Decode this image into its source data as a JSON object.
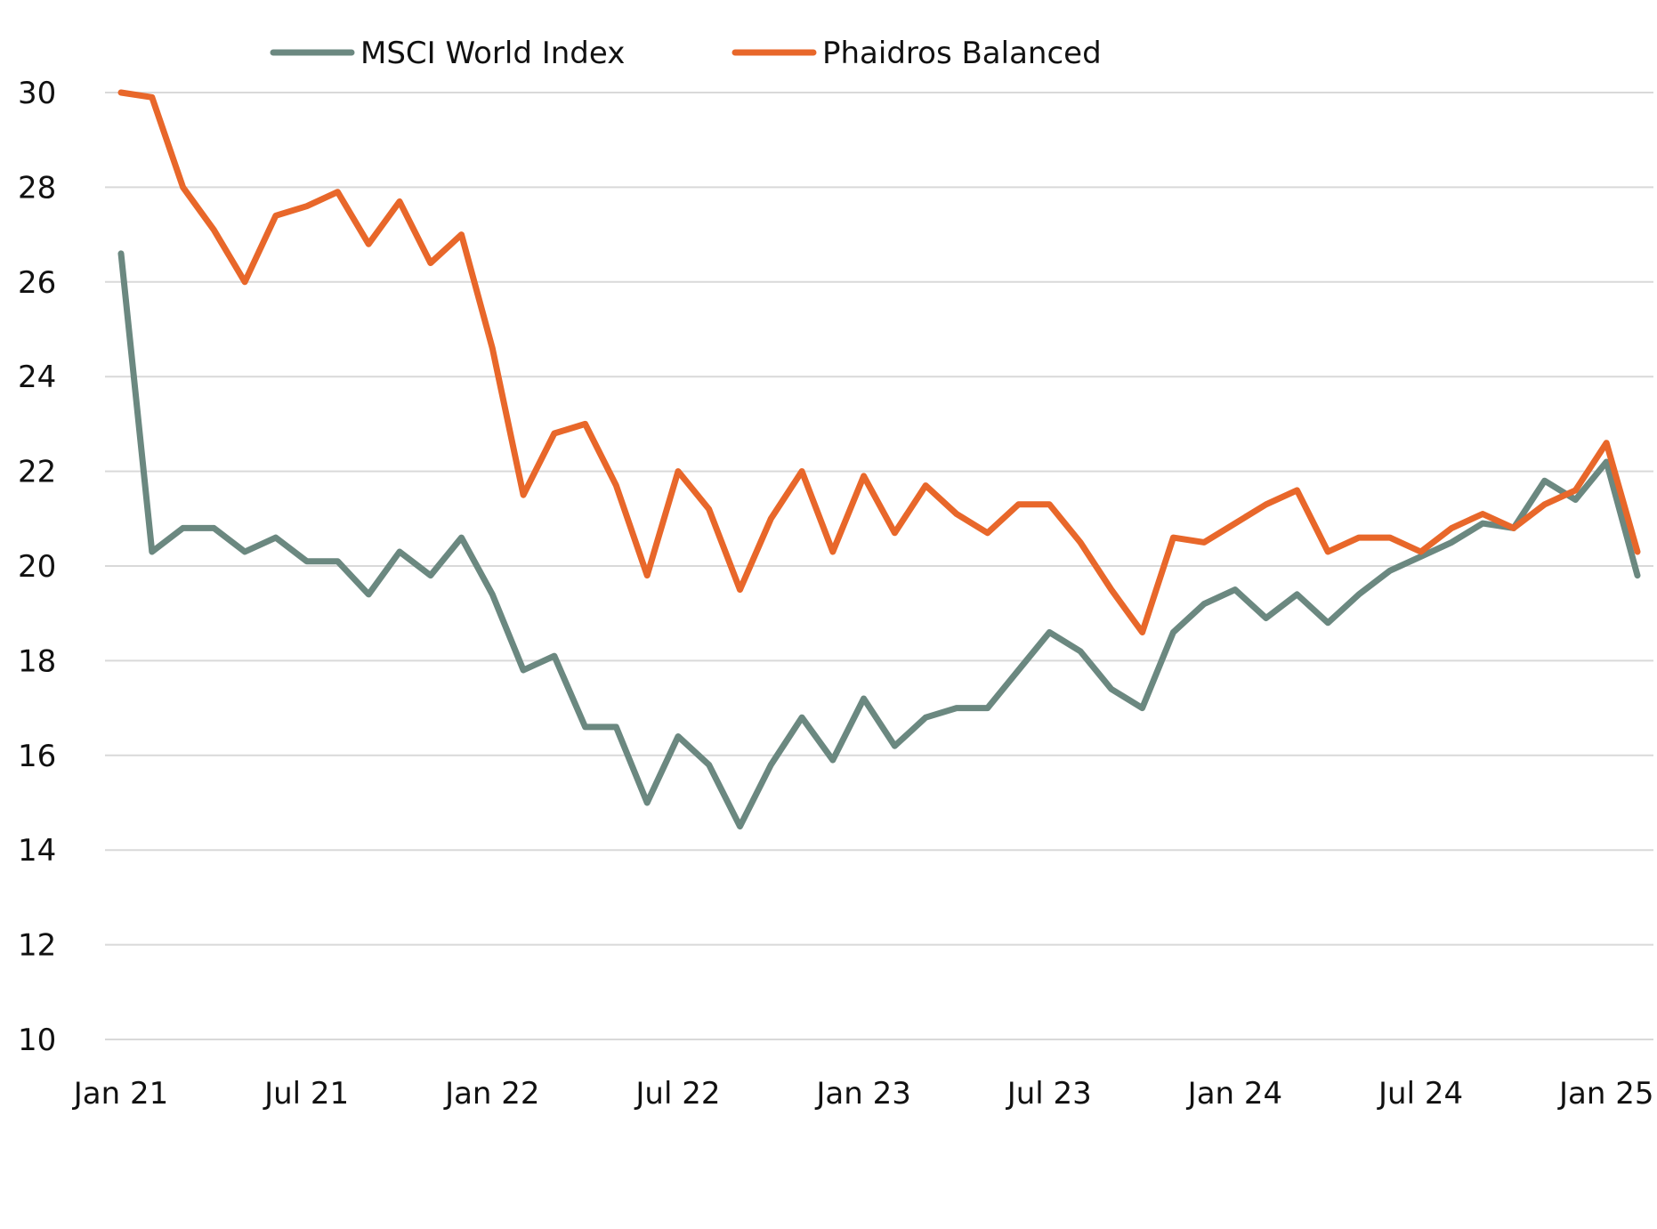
{
  "chart_data": {
    "type": "line",
    "title": "",
    "xlabel": "",
    "ylabel": "",
    "ylim": [
      10,
      30
    ],
    "yticks": [
      10,
      12,
      14,
      16,
      18,
      20,
      22,
      24,
      26,
      28,
      30
    ],
    "xticks": [
      {
        "label": "Jan 21",
        "index": 0
      },
      {
        "label": "Jul 21",
        "index": 6
      },
      {
        "label": "Jan 22",
        "index": 12
      },
      {
        "label": "Jul 22",
        "index": 18
      },
      {
        "label": "Jan 23",
        "index": 24
      },
      {
        "label": "Jul 23",
        "index": 30
      },
      {
        "label": "Jan 24",
        "index": 36
      },
      {
        "label": "Jul 24",
        "index": 42
      },
      {
        "label": "Jan 25",
        "index": 48
      }
    ],
    "x_count": 50,
    "grid": true,
    "legend_position": "top",
    "series": [
      {
        "name": "MSCI World Index",
        "color": "#6b8880",
        "values": [
          26.6,
          20.3,
          20.8,
          20.8,
          20.3,
          20.6,
          20.1,
          20.1,
          19.4,
          20.3,
          19.8,
          20.6,
          19.4,
          17.8,
          18.1,
          16.6,
          16.6,
          15.0,
          16.4,
          15.8,
          14.5,
          15.8,
          16.8,
          15.9,
          17.2,
          16.2,
          16.8,
          17.0,
          17.0,
          17.8,
          18.6,
          18.2,
          17.4,
          17.0,
          18.6,
          19.2,
          19.5,
          18.9,
          19.4,
          18.8,
          19.4,
          19.9,
          20.2,
          20.5,
          20.9,
          20.8,
          21.8,
          21.4,
          22.2,
          19.8
        ]
      },
      {
        "name": "Phaidros Balanced",
        "color": "#e8672a",
        "values": [
          30.0,
          29.9,
          28.0,
          27.1,
          26.0,
          27.4,
          27.6,
          27.9,
          26.8,
          27.7,
          26.4,
          27.0,
          24.6,
          21.5,
          22.8,
          23.0,
          21.7,
          19.8,
          22.0,
          21.2,
          19.5,
          21.0,
          22.0,
          20.3,
          21.9,
          20.7,
          21.7,
          21.1,
          20.7,
          21.3,
          21.3,
          20.5,
          19.5,
          18.6,
          20.6,
          20.5,
          20.9,
          21.3,
          21.6,
          20.3,
          20.6,
          20.6,
          20.3,
          20.8,
          21.1,
          20.8,
          21.3,
          21.6,
          22.6,
          20.3
        ]
      }
    ]
  }
}
